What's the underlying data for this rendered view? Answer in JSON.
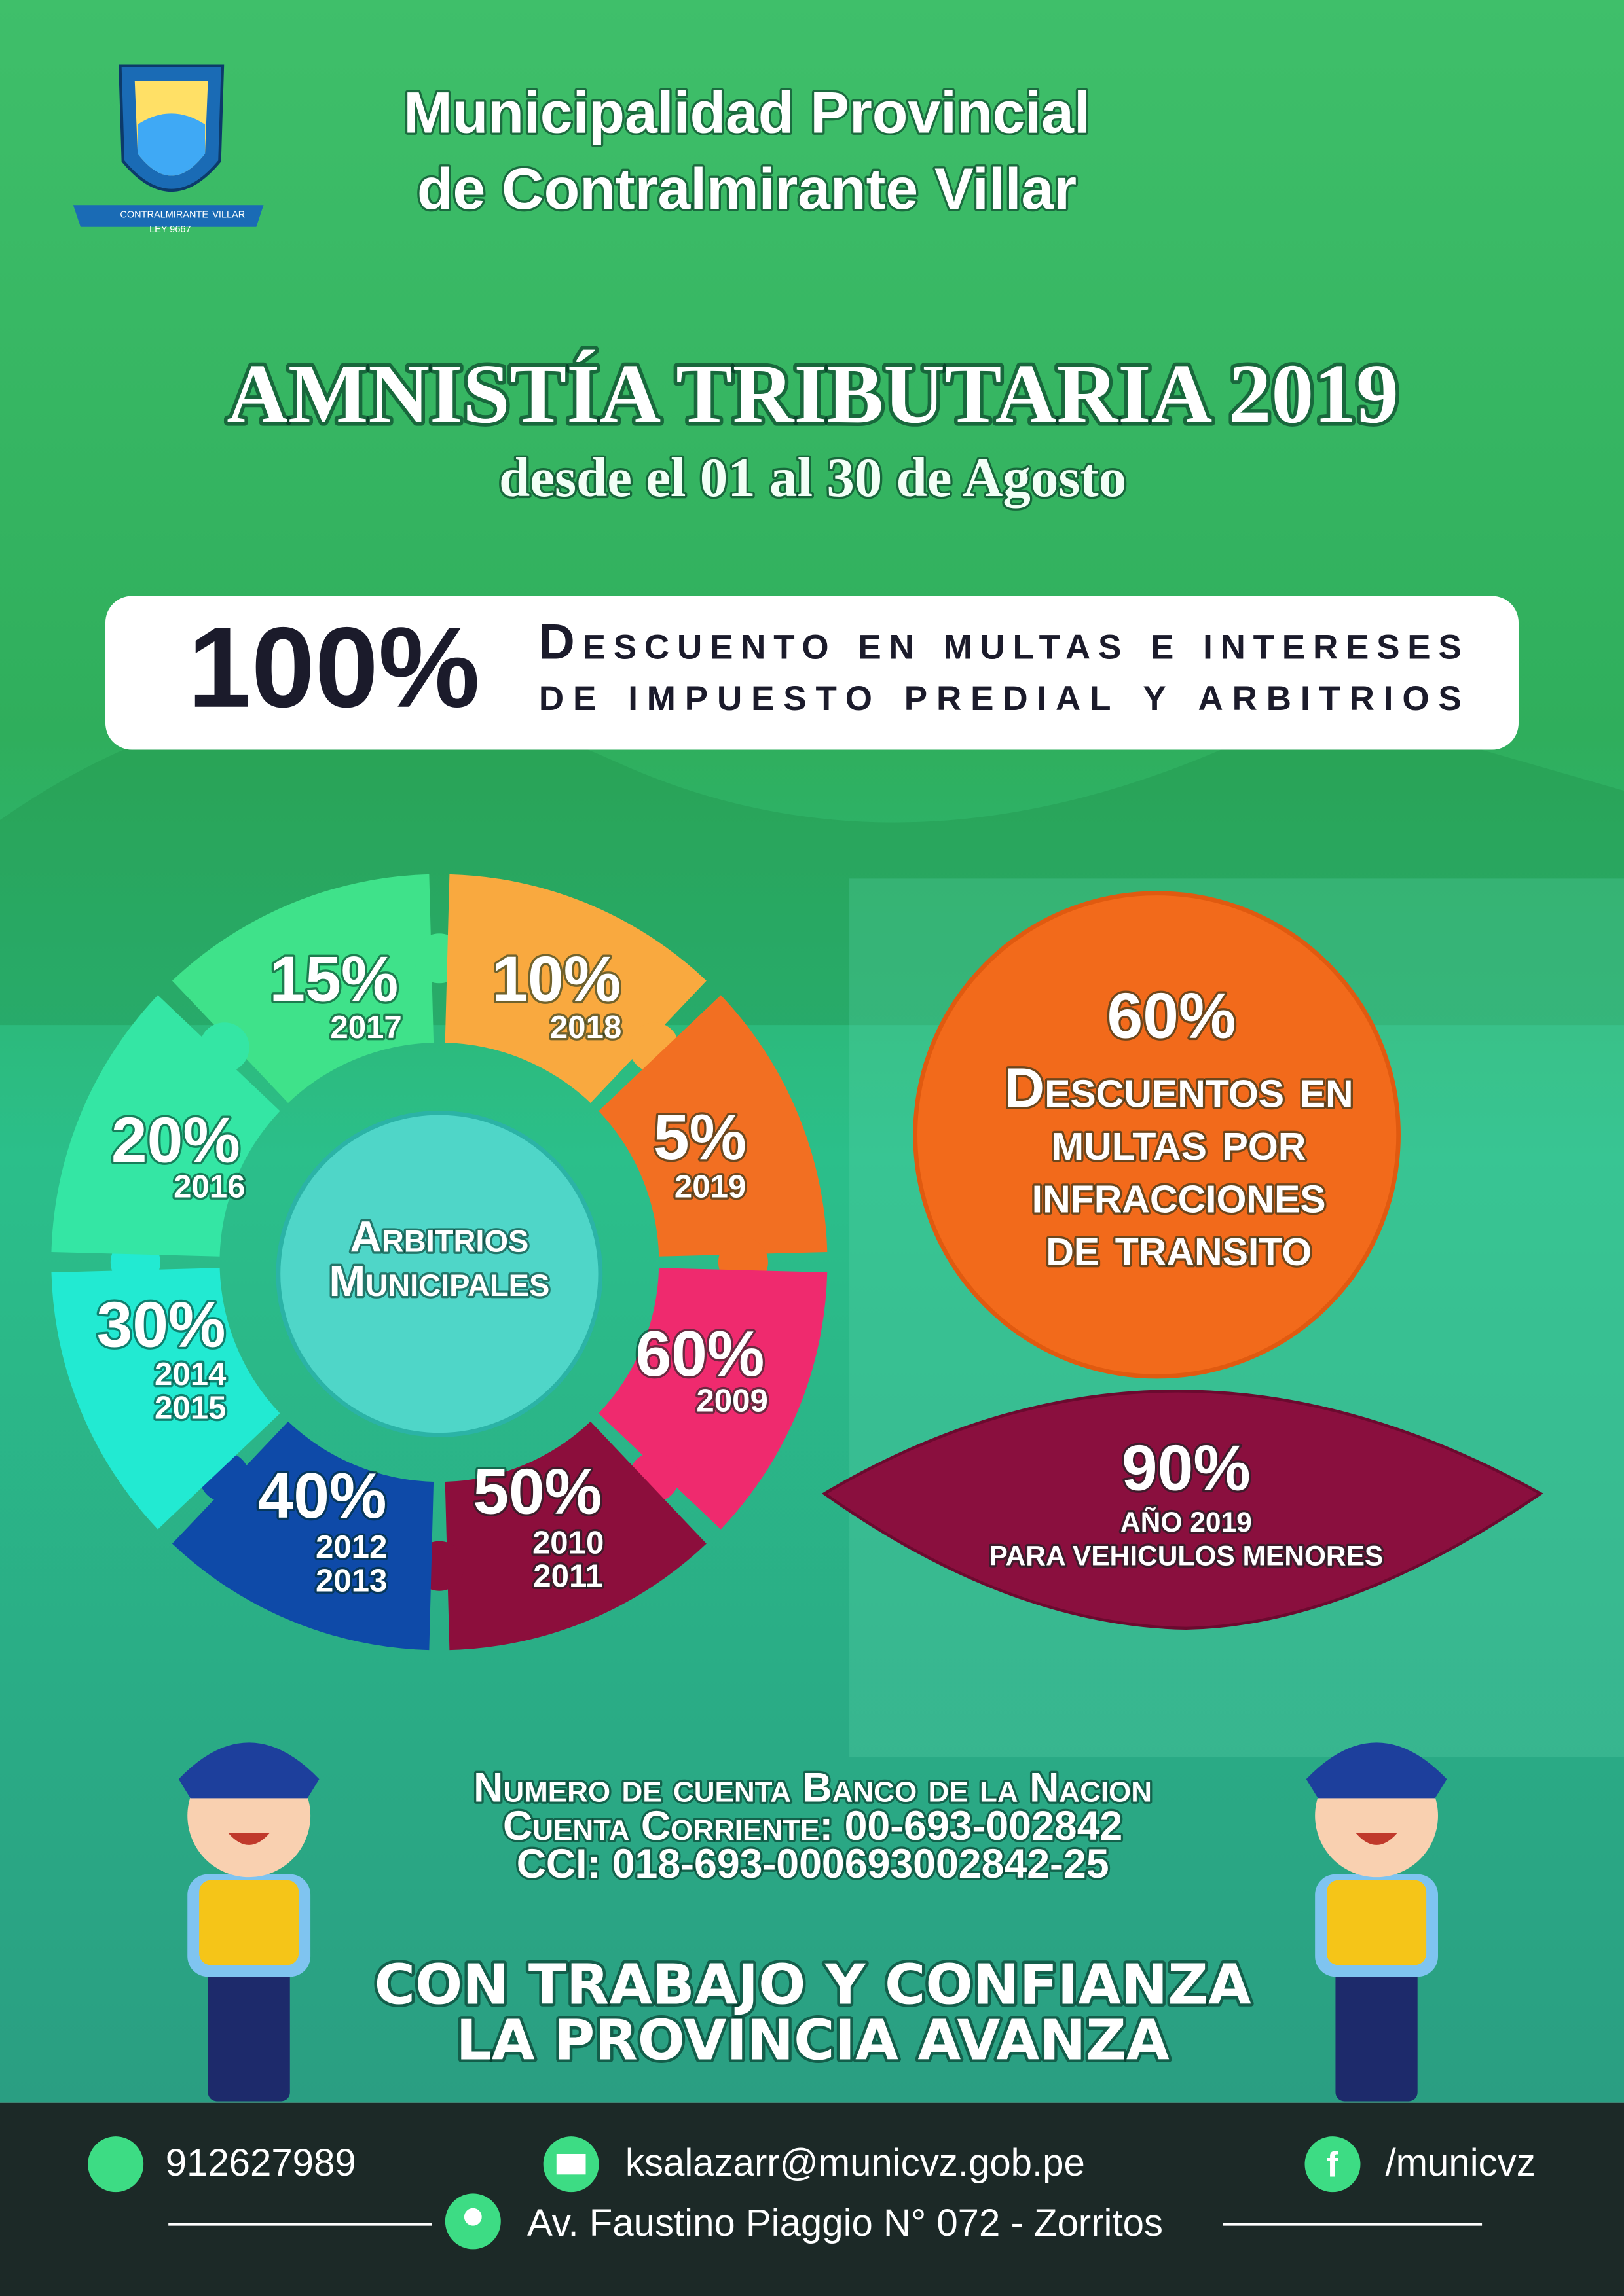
{
  "header": {
    "title_lines": [
      "Municipalidad Provincial",
      "de Contralmirante Villar"
    ],
    "logo_texts": [
      "CONTRALMIRANTE",
      "VILLAR",
      "LEY 9667"
    ]
  },
  "amnesty": {
    "title": "AMNISTÍA TRIBUTARIA 2019",
    "subtitle": "desde el 01 al 30 de Agosto"
  },
  "banner": {
    "percent": "100%",
    "lines": [
      "Descuento en multas e intereses",
      "de impuesto predial y arbitrios"
    ]
  },
  "arbitrios": {
    "center_lines": [
      "Arbitrios",
      "Municipales"
    ],
    "segments": [
      {
        "percent": "15%",
        "years": [
          "2017"
        ]
      },
      {
        "percent": "10%",
        "years": [
          "2018"
        ]
      },
      {
        "percent": "5%",
        "years": [
          "2019"
        ]
      },
      {
        "percent": "60%",
        "years": [
          "2009"
        ]
      },
      {
        "percent": "50%",
        "years": [
          "2010",
          "2011"
        ]
      },
      {
        "percent": "40%",
        "years": [
          "2012",
          "2013"
        ]
      },
      {
        "percent": "30%",
        "years": [
          "2014",
          "2015"
        ]
      },
      {
        "percent": "20%",
        "years": [
          "2016"
        ]
      }
    ]
  },
  "transit": {
    "percent": "60%",
    "lines": [
      "Descuentos en",
      "multas por",
      "infracciones",
      "de transito"
    ],
    "special": {
      "percent": "90%",
      "lines": [
        "AÑO 2019",
        "PARA VEHICULOS MENORES"
      ]
    }
  },
  "bank": {
    "lines": [
      "Numero de cuenta Banco de la Nacion",
      "Cuenta Corriente: 00-693-002842",
      "CCI: 018-693-000693002842-25"
    ]
  },
  "slogan": {
    "lines": [
      "CON TRABAJO Y CONFIANZA",
      "LA PROVINCIA AVANZA"
    ]
  },
  "footer": {
    "phone": "912627989",
    "email": "ksalazarr@municvz.gob.pe",
    "facebook": "/municvz",
    "address": "Av. Faustino Piaggio N° 072 - Zorritos"
  }
}
